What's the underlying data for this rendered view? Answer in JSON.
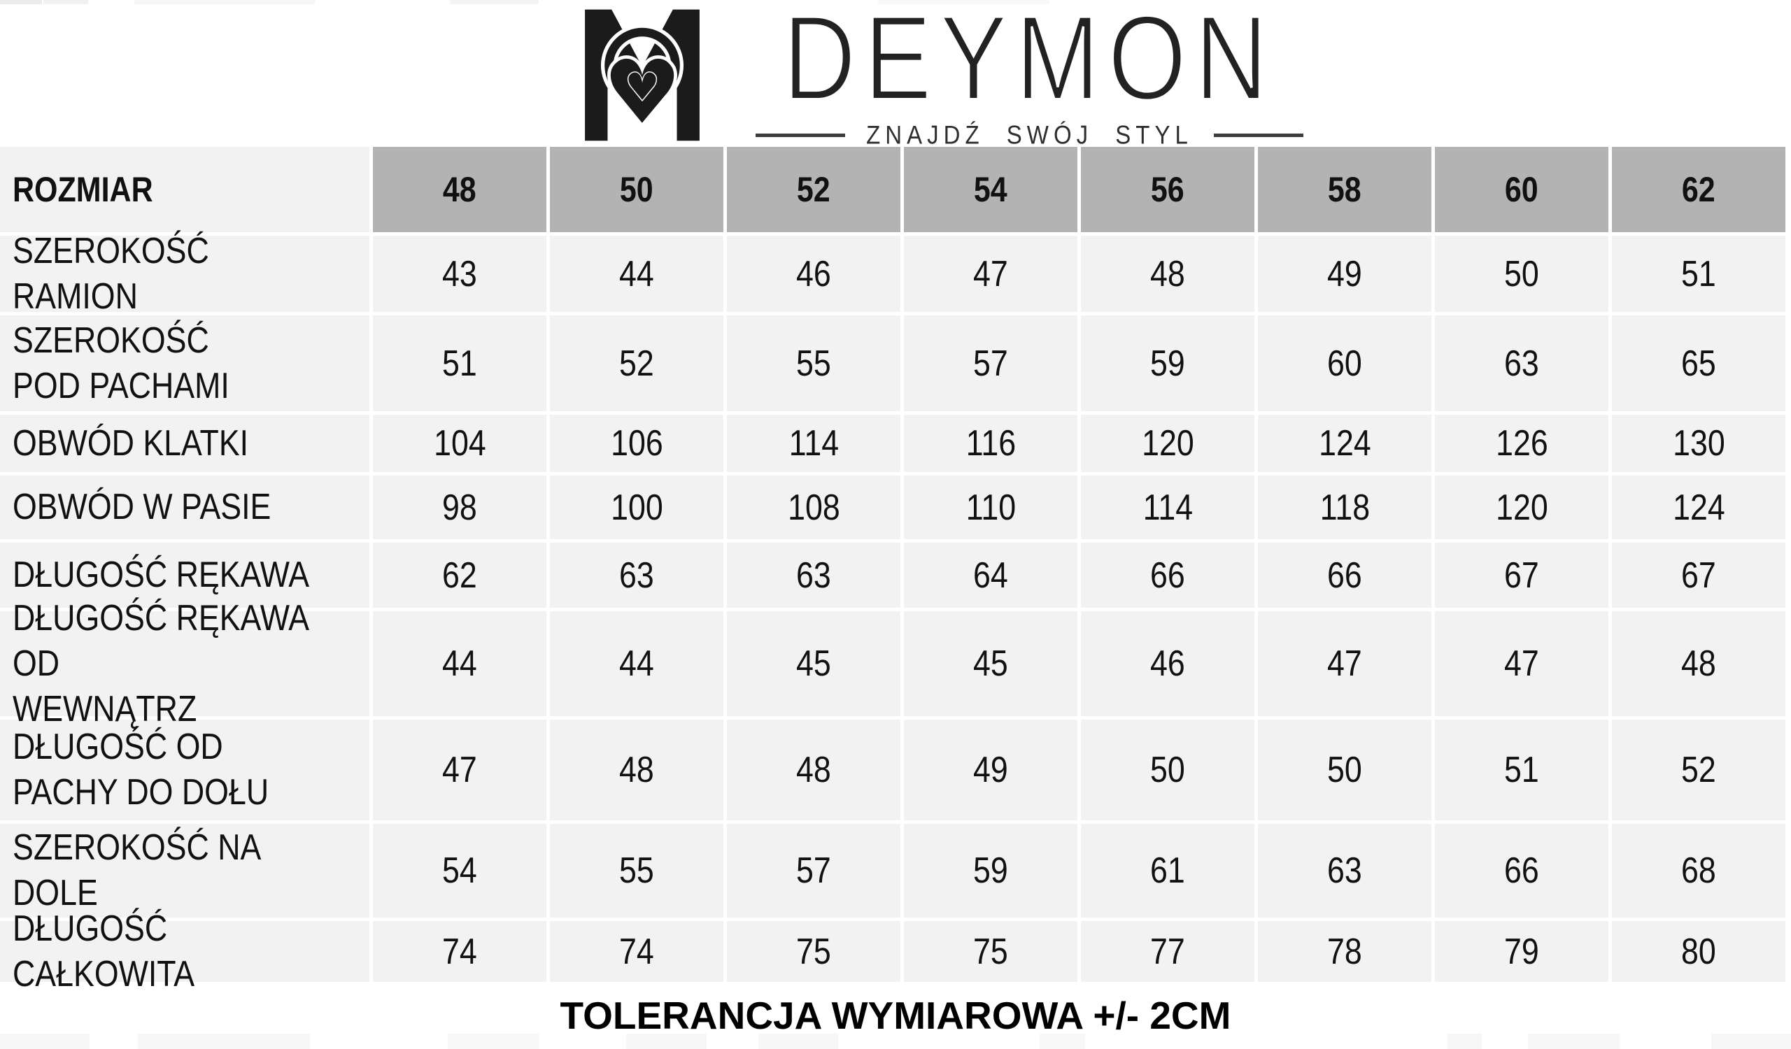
{
  "logo": {
    "brand": "DEYMON",
    "tagline": "ZNAJDŹ SWÓJ STYL",
    "monogram_icon": "m-heart-monogram"
  },
  "table": {
    "header_label": "ROZMIAR",
    "sizes": [
      "48",
      "50",
      "52",
      "54",
      "56",
      "58",
      "60",
      "62"
    ],
    "rows": [
      {
        "label": "SZEROKOŚĆ RAMION",
        "values": [
          "43",
          "44",
          "46",
          "47",
          "48",
          "49",
          "50",
          "51"
        ]
      },
      {
        "label": "SZEROKOŚĆ\nPOD PACHAMI",
        "values": [
          "51",
          "52",
          "55",
          "57",
          "59",
          "60",
          "63",
          "65"
        ]
      },
      {
        "label": "OBWÓD KLATKI",
        "values": [
          "104",
          "106",
          "114",
          "116",
          "120",
          "124",
          "126",
          "130"
        ]
      },
      {
        "label": "OBWÓD W PASIE",
        "values": [
          "98",
          "100",
          "108",
          "110",
          "114",
          "118",
          "120",
          "124"
        ]
      },
      {
        "label": "DŁUGOŚĆ RĘKAWA",
        "values": [
          "62",
          "63",
          "63",
          "64",
          "66",
          "66",
          "67",
          "67"
        ]
      },
      {
        "label": "DŁUGOŚĆ RĘKAWA OD\nWEWNĄTRZ",
        "values": [
          "44",
          "44",
          "45",
          "45",
          "46",
          "47",
          "47",
          "48"
        ]
      },
      {
        "label": "DŁUGOŚĆ OD\nPACHY DO DOŁU",
        "values": [
          "47",
          "48",
          "48",
          "49",
          "50",
          "50",
          "51",
          "52"
        ]
      },
      {
        "label": "SZEROKOŚĆ NA DOLE",
        "values": [
          "54",
          "55",
          "57",
          "59",
          "61",
          "63",
          "66",
          "68"
        ]
      },
      {
        "label": "DŁUGOŚĆ CAŁKOWITA",
        "values": [
          "74",
          "74",
          "75",
          "75",
          "77",
          "78",
          "79",
          "80"
        ]
      }
    ]
  },
  "footer": {
    "tolerance_note": "TOLERANCJA WYMIAROWA +/- 2CM"
  },
  "colors": {
    "header_bg": "#b3b3b3",
    "row_bg": "#f2f2f2",
    "text": "#111111",
    "logo_ink": "#1b1b1b"
  }
}
